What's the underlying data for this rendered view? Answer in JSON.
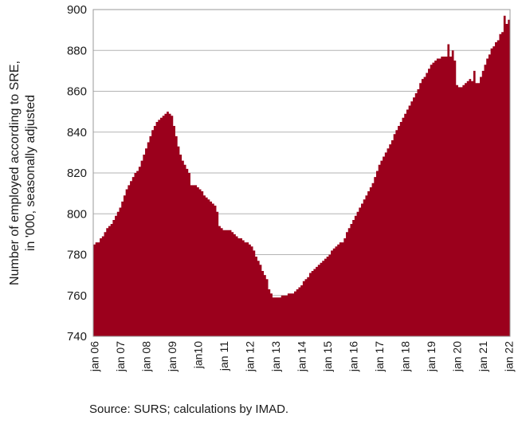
{
  "chart_data": {
    "type": "area",
    "title": "",
    "ylabel_line1": "Number of employed according to SRE,",
    "ylabel_line2": "in '000, seasonally adjusted",
    "ylim": [
      740,
      900
    ],
    "yticks": [
      "740",
      "760",
      "780",
      "800",
      "820",
      "840",
      "860",
      "880",
      "900"
    ],
    "xticks": [
      "jan 06",
      "jan 07",
      "jan 08",
      "jan 09",
      "jan10",
      "jan 11",
      "jan 12",
      "jan 13",
      "jan 14",
      "jan 15",
      "jan 16",
      "jan 17",
      "jan 18",
      "jan 19",
      "jan 20",
      "jan 21",
      "jan 22"
    ],
    "grid": "horizontal",
    "color": "#9b001c",
    "series": [
      {
        "frequency": "monthly",
        "start": "jan 06",
        "values": [
          785,
          786,
          786,
          788,
          789,
          791,
          793,
          794,
          795,
          797,
          799,
          801,
          803,
          806,
          809,
          812,
          814,
          816,
          818,
          820,
          821,
          823,
          826,
          829,
          832,
          835,
          838,
          841,
          843,
          845,
          846,
          847,
          848,
          849,
          850,
          849,
          848,
          843,
          838,
          833,
          829,
          826,
          824,
          822,
          820,
          814,
          814,
          814,
          813,
          812,
          811,
          809,
          808,
          807,
          806,
          805,
          804,
          801,
          794,
          793,
          792,
          792,
          792,
          792,
          791,
          790,
          789,
          788,
          788,
          787,
          786,
          786,
          785,
          784,
          782,
          779,
          777,
          775,
          772,
          770,
          768,
          763,
          761,
          759,
          759,
          759,
          759,
          760,
          760,
          760,
          761,
          761,
          761,
          762,
          763,
          764,
          765,
          767,
          768,
          769,
          771,
          772,
          773,
          774,
          775,
          776,
          777,
          778,
          779,
          780,
          782,
          783,
          784,
          785,
          786,
          786,
          788,
          791,
          793,
          795,
          797,
          799,
          801,
          803,
          805,
          807,
          809,
          811,
          813,
          815,
          818,
          821,
          824,
          826,
          828,
          830,
          832,
          834,
          836,
          839,
          841,
          843,
          845,
          847,
          849,
          851,
          853,
          855,
          857,
          859,
          861,
          864,
          866,
          867,
          869,
          871,
          873,
          874,
          875,
          876,
          876,
          877,
          877,
          877,
          883,
          877,
          880,
          875,
          863,
          862,
          862,
          863,
          864,
          865,
          866,
          865,
          870,
          864,
          864,
          867,
          870,
          873,
          876,
          878,
          881,
          882,
          884,
          885,
          888,
          889,
          897,
          893,
          895
        ]
      }
    ]
  },
  "source": "Source: SURS; calculations by IMAD."
}
